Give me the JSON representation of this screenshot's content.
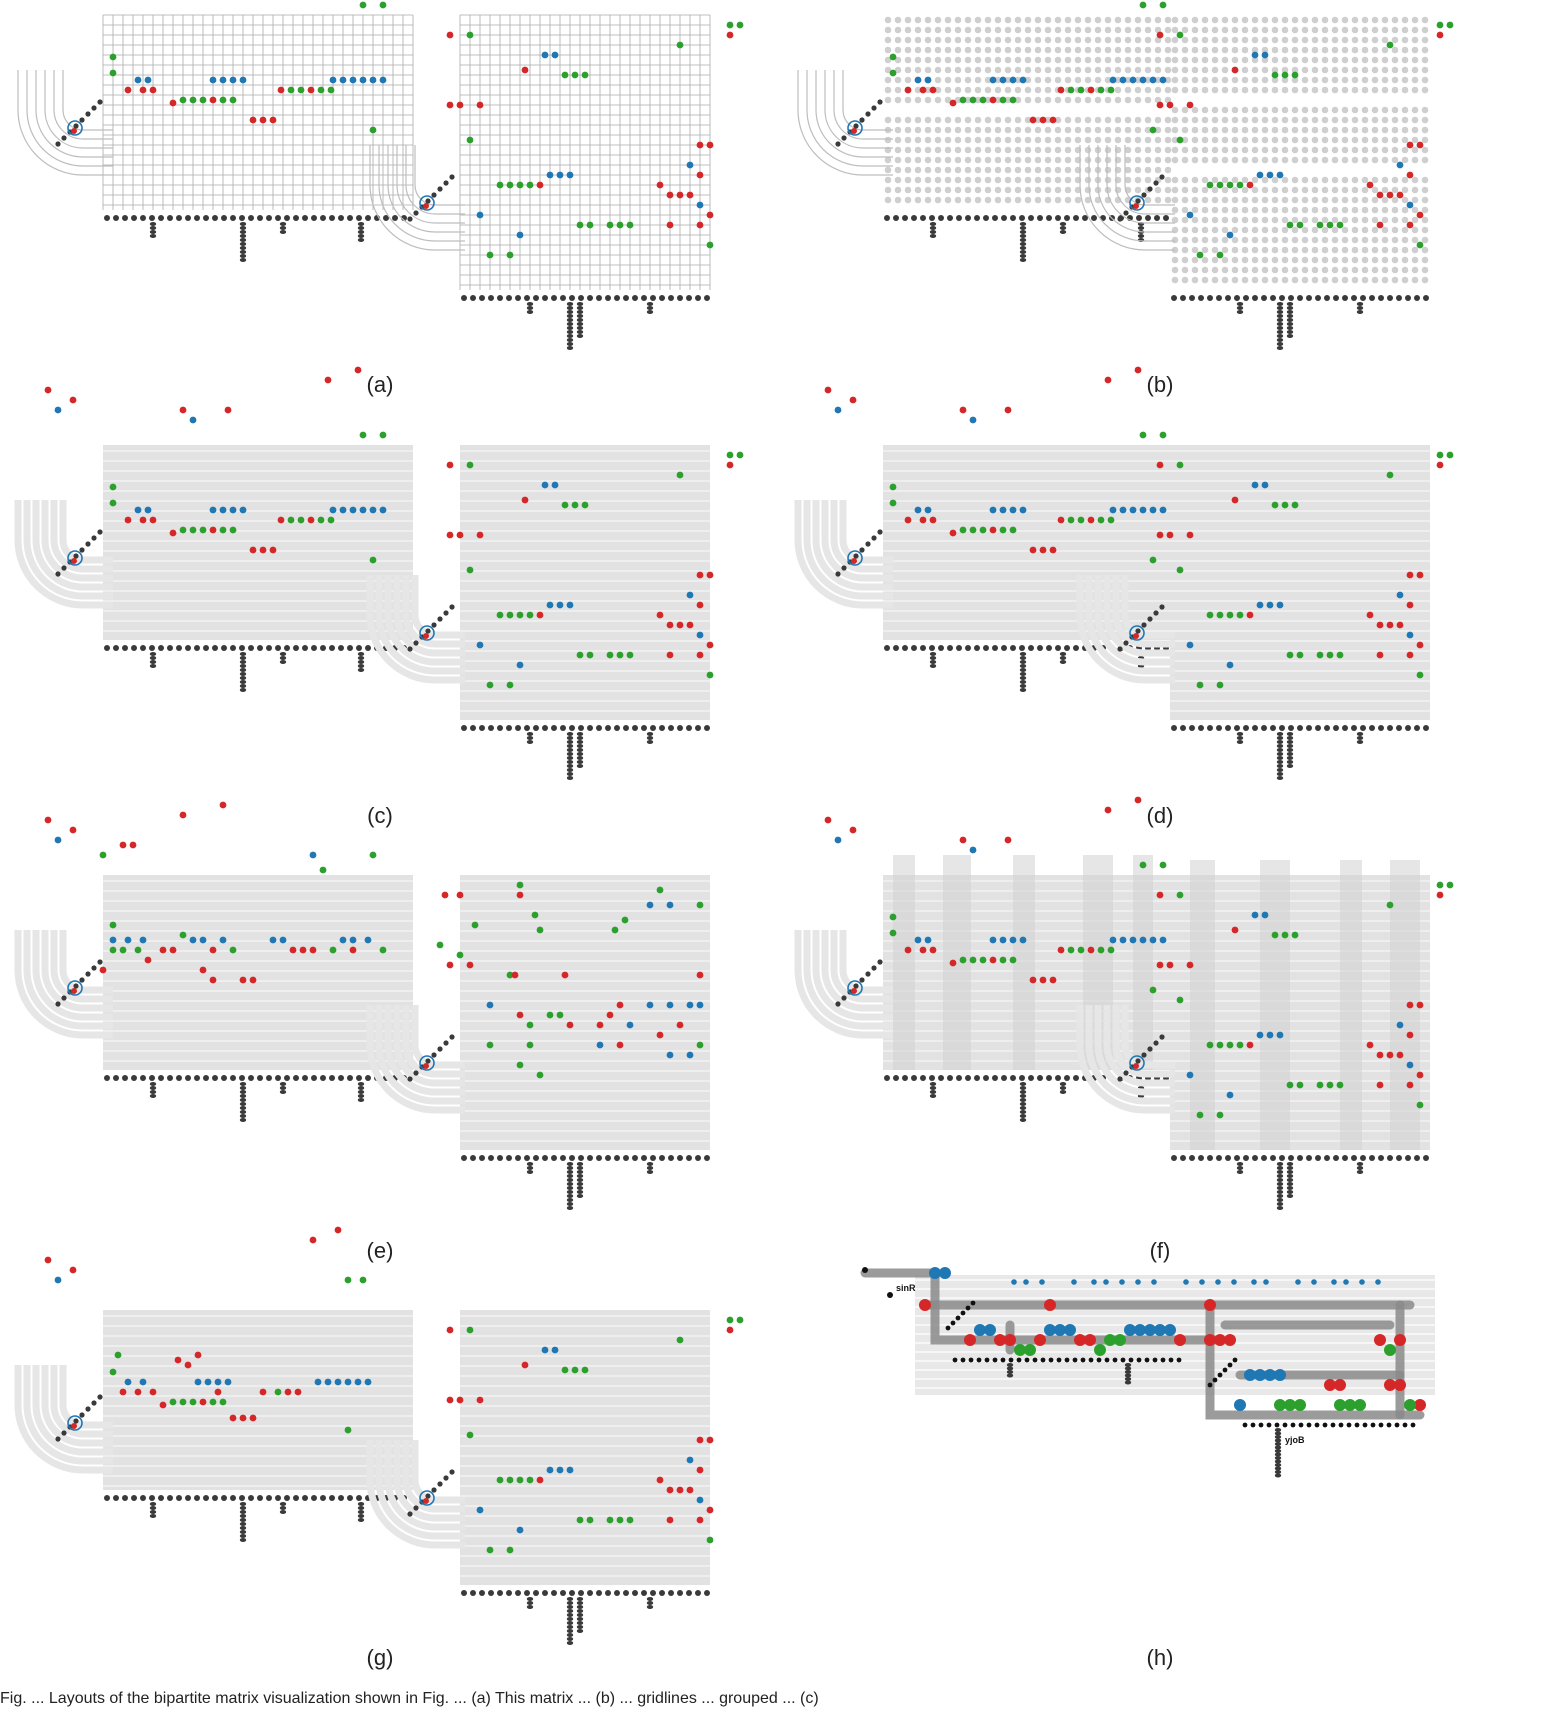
{
  "panel_labels": [
    "(a)",
    "(b)",
    "(c)",
    "(d)",
    "(e)",
    "(f)",
    "(g)",
    "(h)"
  ],
  "gene_labels": {
    "first": "sinR",
    "second": "yjoB"
  },
  "caption": "Fig. ... Layouts of the bipartite matrix visualization shown in Fig. ... (a) This matrix ... (b) ... gridlines ... grouped ... (c)",
  "colors": {
    "red": "#d62728",
    "blue": "#1f77b4",
    "green": "#2ca02c",
    "node": "#3a3a3a",
    "grid_line": "#aaaaaa",
    "band": "#e2e2e2",
    "arc": "#cfcfcf",
    "dot_grey": "#cfcfcf"
  },
  "icons": {
    "stack": "stacked-node-icon",
    "dot": "dot-icon",
    "arc": "arc-connector-icon"
  }
}
